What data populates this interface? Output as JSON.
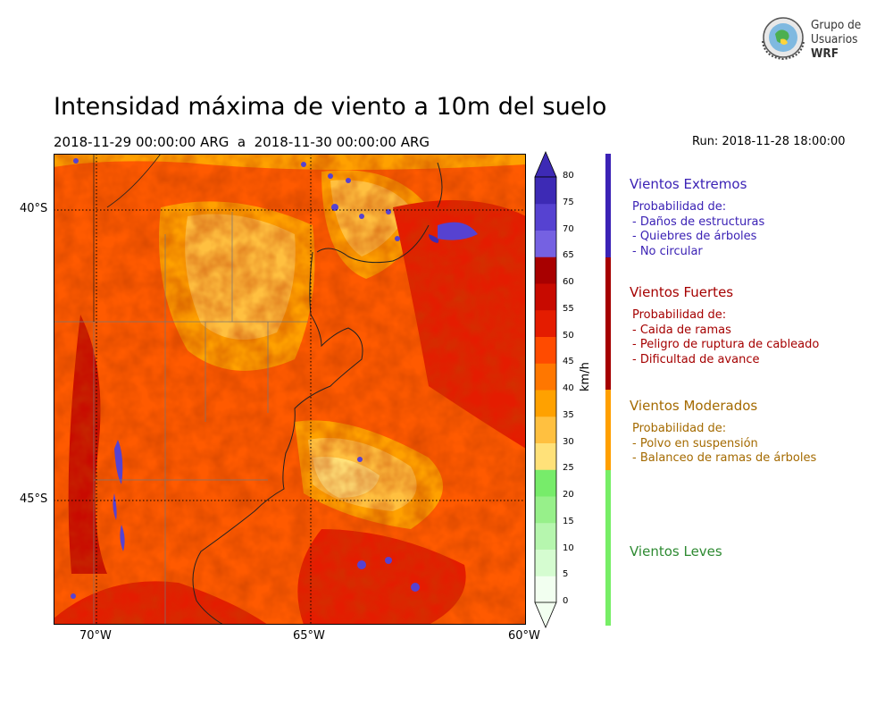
{
  "title": "Intensidad máxima de viento a 10m del suelo",
  "period": "2018-11-29 00:00:00 ARG  a  2018-11-30 00:00:00 ARG",
  "run": "Run: 2018-11-28 18:00:00",
  "logo": {
    "line1": "Grupo de",
    "line2": "Usuarios",
    "line3": "WRF"
  },
  "map": {
    "lat_labels": [
      "40°S",
      "45°S"
    ],
    "lon_labels": [
      "70°W",
      "65°W",
      "60°W"
    ],
    "lon_range": [
      "71°W",
      "60°W"
    ],
    "lat_range": [
      "39.1°S",
      "47.2°S"
    ],
    "gridlines": "dotted"
  },
  "colorbar": {
    "unit": "km/h",
    "levels": [
      0,
      5,
      10,
      15,
      20,
      25,
      30,
      35,
      40,
      45,
      50,
      55,
      60,
      65,
      70,
      75,
      80
    ],
    "colors": [
      "#f2fff0",
      "#d5fcd0",
      "#b6f6ae",
      "#97f08a",
      "#77ec6a",
      "#ffe179",
      "#ffc040",
      "#ffa100",
      "#ff7700",
      "#ff4b00",
      "#e41c00",
      "#c80a00",
      "#a80000",
      "#7561e2",
      "#5642d1",
      "#3d2ab5"
    ],
    "extend": "both"
  },
  "categories": [
    {
      "name": "Vientos Extremos",
      "color": "#3b22b5",
      "textcolor": "#3b22b5",
      "body": "Probabilidad de:\n- Daños de estructuras\n- Quiebres de árboles\n- No circular"
    },
    {
      "name": "Vientos Fuertes",
      "color": "#a50000",
      "textcolor": "#a50000",
      "body": "Probabilidad de:\n- Caida de ramas\n- Peligro de ruptura de cableado\n- Dificultad de avance"
    },
    {
      "name": "Vientos Moderados",
      "color": "#ff9f00",
      "textcolor": "#a46a00",
      "body": "Probabilidad de:\n- Polvo en suspensión\n- Balanceo de ramas de árboles"
    },
    {
      "name": "Vientos Leves",
      "color": "#77ee66",
      "textcolor": "#2e8a32",
      "body": ""
    }
  ]
}
